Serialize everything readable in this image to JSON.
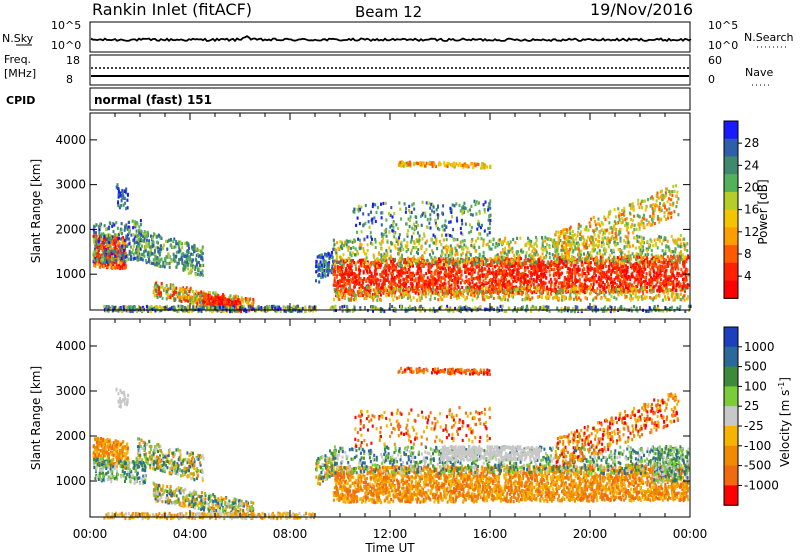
{
  "header": {
    "station": "Rankin Inlet (fitACF)",
    "beam": "Beam 12",
    "date": "19/Nov/2016"
  },
  "param_panels": {
    "nsky": {
      "label": "N.Sky",
      "ticks_left": [
        "10^5",
        "10^0"
      ]
    },
    "nsearch": {
      "label": "N.Search",
      "ticks_right": [
        "10^5",
        "10^0"
      ]
    },
    "freq": {
      "label_line1": "Freq.",
      "label_line2": "[MHz]",
      "ticks_left": [
        "18",
        "8"
      ]
    },
    "nave": {
      "label": "Nave",
      "ticks_right": [
        "60",
        "0"
      ]
    },
    "cpid": {
      "label": "CPID",
      "text": "normal (fast) 151"
    }
  },
  "chart_data": [
    {
      "type": "heatmap",
      "name": "power",
      "ylabel": "Slant Range [km]",
      "xlabel": "",
      "y_ticks": [
        1000,
        2000,
        3000,
        4000
      ],
      "ylim": [
        200,
        4600
      ],
      "xlim": [
        0,
        24
      ],
      "colorbar": {
        "label": "Power [dB]",
        "ticks": [
          "4",
          "8",
          "12",
          "16",
          "20",
          "24",
          "28"
        ],
        "colors": [
          "#1a1aff",
          "#2f5fa8",
          "#3f8a6e",
          "#54b05a",
          "#b5cc2a",
          "#f3c400",
          "#ff9e00",
          "#ff5a00",
          "#ff2000",
          "#ff0000"
        ]
      }
    },
    {
      "type": "heatmap",
      "name": "velocity",
      "ylabel": "Slant Range [km]",
      "xlabel": "Time UT",
      "y_ticks": [
        1000,
        2000,
        3000,
        4000
      ],
      "ylim": [
        200,
        4600
      ],
      "xlim": [
        0,
        24
      ],
      "x_ticks": [
        "00:00",
        "04:00",
        "08:00",
        "12:00",
        "16:00",
        "20:00",
        "00:00"
      ],
      "colorbar": {
        "label": "Velocity [m s",
        "label_sup": "-1",
        "label_end": "]",
        "ticks": [
          "1000",
          "500",
          "100",
          "25",
          "-25",
          "-100",
          "-500",
          "-1000"
        ],
        "colors": [
          "#1c3fbf",
          "#2a6a9a",
          "#3f8a3a",
          "#7acc3a",
          "#c8c8c8",
          "#f5b400",
          "#f08a00",
          "#f06a10",
          "#ff0000"
        ]
      }
    }
  ]
}
